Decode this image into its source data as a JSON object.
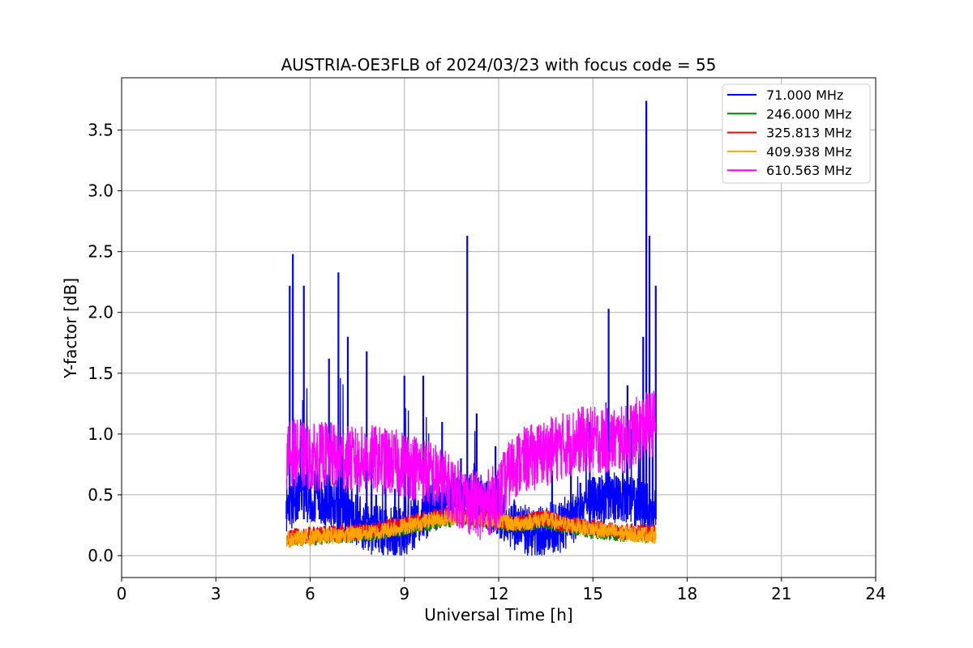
{
  "chart_data": {
    "type": "line",
    "title": "AUSTRIA-OE3FLB of 2024/03/23 with focus code = 55",
    "xlabel": "Universal Time [h]",
    "ylabel": "Y-factor [dB]",
    "xlim": [
      0,
      24
    ],
    "ylim": [
      -0.18,
      3.93
    ],
    "xticks": [
      "0",
      "3",
      "6",
      "9",
      "12",
      "15",
      "18",
      "21",
      "24"
    ],
    "yticks": [
      "0.0",
      "0.5",
      "1.0",
      "1.5",
      "2.0",
      "2.5",
      "3.0",
      "3.5"
    ],
    "grid": true,
    "legend_position": "top-right",
    "series": [
      {
        "name": " 71.000 MHz",
        "color": "#0000ff",
        "x": [
          5.25,
          5.35,
          5.45,
          5.6,
          5.8,
          6.0,
          6.3,
          6.6,
          6.9,
          7.2,
          7.5,
          7.8,
          8.1,
          8.4,
          8.7,
          9.0,
          9.3,
          9.6,
          9.9,
          10.2,
          10.5,
          10.8,
          11.0,
          11.3,
          11.6,
          11.9,
          12.2,
          12.5,
          12.8,
          13.1,
          13.4,
          13.7,
          14.0,
          14.3,
          14.6,
          14.9,
          15.2,
          15.5,
          15.8,
          16.1,
          16.4,
          16.6,
          16.7,
          16.8,
          16.9,
          17.0
        ],
        "y": [
          0.45,
          2.22,
          2.48,
          0.6,
          2.22,
          0.55,
          0.8,
          1.62,
          2.33,
          1.8,
          0.7,
          1.68,
          0.5,
          1.0,
          0.55,
          1.48,
          0.9,
          1.48,
          0.7,
          1.1,
          0.5,
          0.8,
          2.63,
          1.17,
          0.6,
          0.9,
          0.2,
          0.45,
          0.18,
          0.3,
          0.05,
          0.7,
          0.4,
          0.85,
          0.6,
          1.1,
          0.4,
          2.03,
          0.6,
          1.4,
          0.5,
          1.8,
          3.74,
          2.63,
          1.0,
          2.22
        ]
      },
      {
        "name": " 246.000 MHz",
        "color": "#008000",
        "x": [
          5.25,
          6.0,
          7.0,
          8.0,
          9.0,
          10.0,
          10.8,
          11.5,
          12.0,
          12.5,
          13.0,
          13.5,
          14.0,
          15.0,
          16.0,
          17.0
        ],
        "y": [
          0.12,
          0.14,
          0.16,
          0.18,
          0.22,
          0.28,
          0.3,
          0.28,
          0.27,
          0.24,
          0.26,
          0.28,
          0.24,
          0.2,
          0.17,
          0.16
        ]
      },
      {
        "name": " 325.813 MHz",
        "color": "#ff0000",
        "x": [
          5.25,
          6.0,
          7.0,
          8.0,
          9.0,
          10.0,
          10.8,
          11.5,
          12.0,
          12.5,
          13.0,
          13.5,
          14.0,
          15.0,
          16.0,
          17.0
        ],
        "y": [
          0.15,
          0.17,
          0.19,
          0.21,
          0.26,
          0.32,
          0.34,
          0.32,
          0.3,
          0.27,
          0.29,
          0.31,
          0.27,
          0.23,
          0.2,
          0.19
        ]
      },
      {
        "name": " 409.938 MHz",
        "color": "#ffa500",
        "x": [
          5.25,
          6.0,
          7.0,
          8.0,
          9.0,
          10.0,
          10.8,
          11.5,
          12.0,
          12.5,
          13.0,
          13.5,
          14.0,
          15.0,
          16.0,
          17.0
        ],
        "y": [
          0.13,
          0.15,
          0.17,
          0.19,
          0.24,
          0.3,
          0.32,
          0.3,
          0.29,
          0.26,
          0.28,
          0.3,
          0.26,
          0.22,
          0.18,
          0.17
        ]
      },
      {
        "name": " 610.563 MHz",
        "color": "#ff00ff",
        "x": [
          5.25,
          5.5,
          6.0,
          6.5,
          7.0,
          7.5,
          8.0,
          8.5,
          9.0,
          9.5,
          10.0,
          10.5,
          11.0,
          11.5,
          12.0,
          12.5,
          13.0,
          13.5,
          14.0,
          14.5,
          15.0,
          15.5,
          16.0,
          16.5,
          17.0
        ],
        "y": [
          0.82,
          0.85,
          0.8,
          0.83,
          0.8,
          0.78,
          0.8,
          0.77,
          0.75,
          0.72,
          0.65,
          0.55,
          0.45,
          0.4,
          0.5,
          0.75,
          0.8,
          0.85,
          0.9,
          0.95,
          0.95,
          0.95,
          0.95,
          1.05,
          1.1
        ]
      }
    ]
  }
}
